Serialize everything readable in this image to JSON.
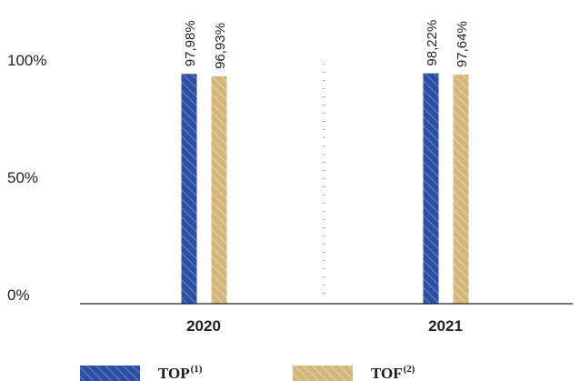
{
  "chart_data": {
    "type": "bar",
    "categories": [
      "2020",
      "2021"
    ],
    "series": [
      {
        "name": "TOP",
        "name_sup": "(1)",
        "values": [
          97.98,
          98.22
        ],
        "labels": [
          "97,98%",
          "98,22%"
        ],
        "color": "#2b4fa3",
        "pattern": "diagonal-hatch"
      },
      {
        "name": "TOF",
        "name_sup": "(2)",
        "values": [
          96.93,
          97.64
        ],
        "labels": [
          "96,93%",
          "97,64%"
        ],
        "color": "#d3b67a",
        "pattern": "diagonal-hatch"
      }
    ],
    "yticks": [
      {
        "value": 0,
        "label": "0%"
      },
      {
        "value": 50,
        "label": "50%"
      },
      {
        "value": 100,
        "label": "100%"
      }
    ],
    "ylim": [
      0,
      100
    ],
    "grid": false,
    "category_separator": "dotted",
    "legend_position": "bottom"
  }
}
